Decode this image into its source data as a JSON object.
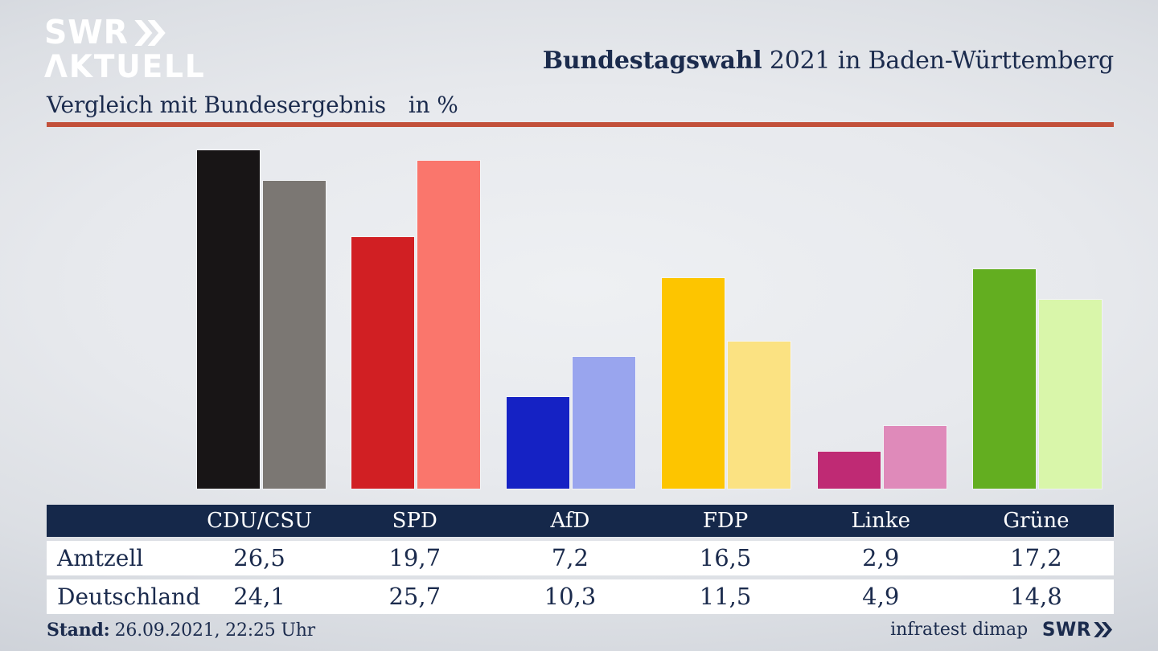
{
  "header": {
    "logo": {
      "line1": "SWR",
      "line2": "ΛKTUELL"
    },
    "title_bold": "Bundestagswahl",
    "title_rest": " 2021 in Baden-Württemberg"
  },
  "subtitle": {
    "text": "Vergleich mit Bundesergebnis",
    "unit": "in %"
  },
  "chart_data": {
    "type": "bar",
    "title": "Vergleich mit Bundesergebnis in %",
    "categories": [
      "CDU/CSU",
      "SPD",
      "AfD",
      "FDP",
      "Linke",
      "Grüne"
    ],
    "series": [
      {
        "name": "Amtzell",
        "values": [
          26.5,
          19.7,
          7.2,
          16.5,
          2.9,
          17.2
        ],
        "colors": [
          "#181516",
          "#d11f23",
          "#1522c4",
          "#fdc500",
          "#bf2a74",
          "#63ae20"
        ]
      },
      {
        "name": "Deutschland",
        "values": [
          24.1,
          25.7,
          10.3,
          11.5,
          4.9,
          14.8
        ],
        "colors": [
          "#7b7773",
          "#fa766c",
          "#99a5ee",
          "#fbe282",
          "#df8aba",
          "#d9f6aa"
        ]
      }
    ],
    "ylabel": "%",
    "ylim": [
      0,
      27
    ],
    "grid": false,
    "legend_position": "table-below",
    "value_label_style": "comma-decimal"
  },
  "table": {
    "columns": [
      "CDU/CSU",
      "SPD",
      "AfD",
      "FDP",
      "Linke",
      "Grüne"
    ],
    "rows": [
      {
        "label": "Amtzell",
        "values": [
          "26,5",
          "19,7",
          "7,2",
          "16,5",
          "2,9",
          "17,2"
        ]
      },
      {
        "label": "Deutschland",
        "values": [
          "24,1",
          "25,7",
          "10,3",
          "11,5",
          "4,9",
          "14,8"
        ]
      }
    ]
  },
  "footer": {
    "stand_label": "Stand:",
    "stand_value": "26.09.2021, 22:25 Uhr",
    "source": "infratest dimap",
    "source_logo": "SWR"
  },
  "colors": {
    "navy_text": "#1b2b4d",
    "table_header_bg": "#15284a",
    "divider_red": "#c2503a",
    "logo_white": "#ffffff"
  }
}
